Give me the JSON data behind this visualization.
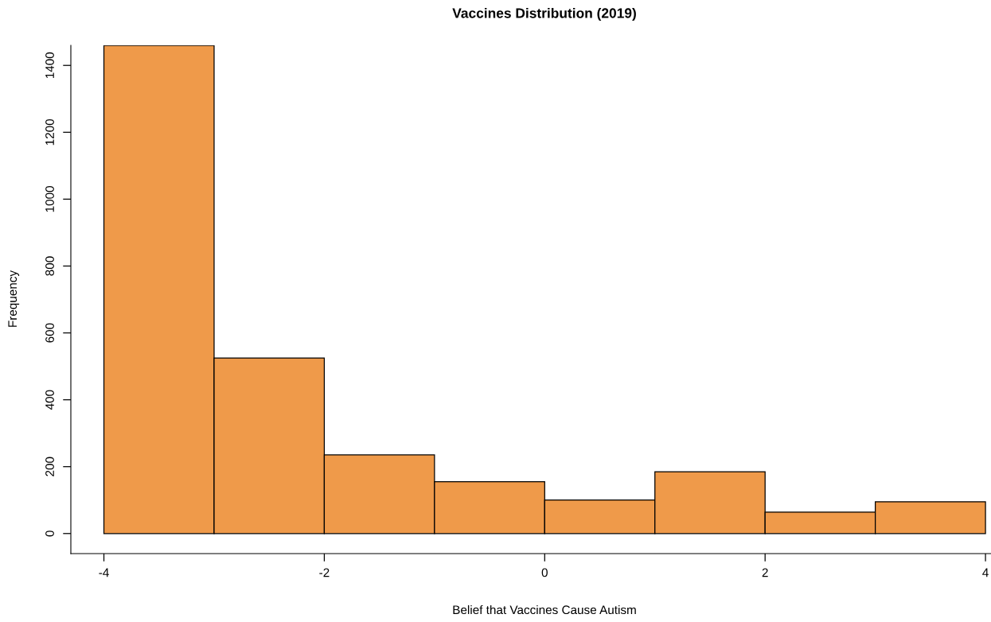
{
  "chart_data": {
    "type": "histogram",
    "title": "Vaccines Distribution (2019)",
    "xlabel": "Belief that Vaccines Cause Autism",
    "ylabel": "Frequency",
    "bins": [
      -4,
      -3,
      -2,
      -1,
      0,
      1,
      2,
      3,
      4
    ],
    "values": [
      1460,
      525,
      235,
      155,
      100,
      185,
      64,
      95
    ],
    "color": "#ef9a4a",
    "xlim": [
      -4.3,
      4.05
    ],
    "ylim": [
      -60,
      1460
    ],
    "xticks": [
      -4,
      -2,
      0,
      2,
      4
    ],
    "yticks": [
      0,
      200,
      400,
      600,
      800,
      1000,
      1200,
      1400
    ],
    "grid": false
  }
}
